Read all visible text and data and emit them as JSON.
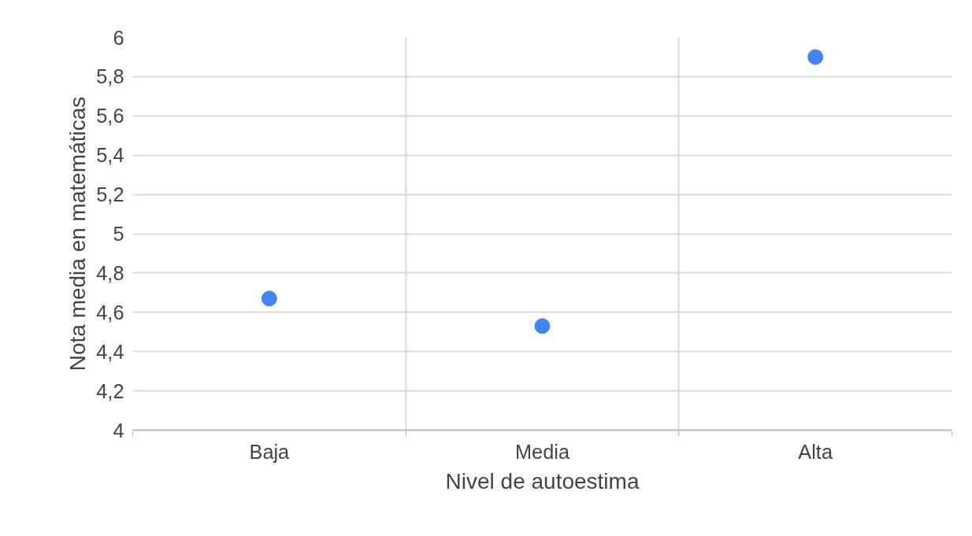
{
  "chart_data": {
    "type": "scatter",
    "xlabel": "Nivel de autoestima",
    "ylabel": "Nota media en matemáticas",
    "categories": [
      "Baja",
      "Media",
      "Alta"
    ],
    "series": [
      {
        "color": "#4285f4",
        "values": [
          4.67,
          4.53,
          5.9
        ]
      }
    ],
    "ylim": [
      4,
      6
    ],
    "yticks": [
      {
        "value": 4,
        "label": "4"
      },
      {
        "value": 4.2,
        "label": "4,2"
      },
      {
        "value": 4.4,
        "label": "4,4"
      },
      {
        "value": 4.6,
        "label": "4,6"
      },
      {
        "value": 4.8,
        "label": "4,8"
      },
      {
        "value": 5,
        "label": "5"
      },
      {
        "value": 5.2,
        "label": "5,2"
      },
      {
        "value": 5.4,
        "label": "5,4"
      },
      {
        "value": 5.6,
        "label": "5,6"
      },
      {
        "value": 5.8,
        "label": "5,8"
      },
      {
        "value": 6,
        "label": "6"
      }
    ],
    "grid": true,
    "marker": "circle"
  }
}
